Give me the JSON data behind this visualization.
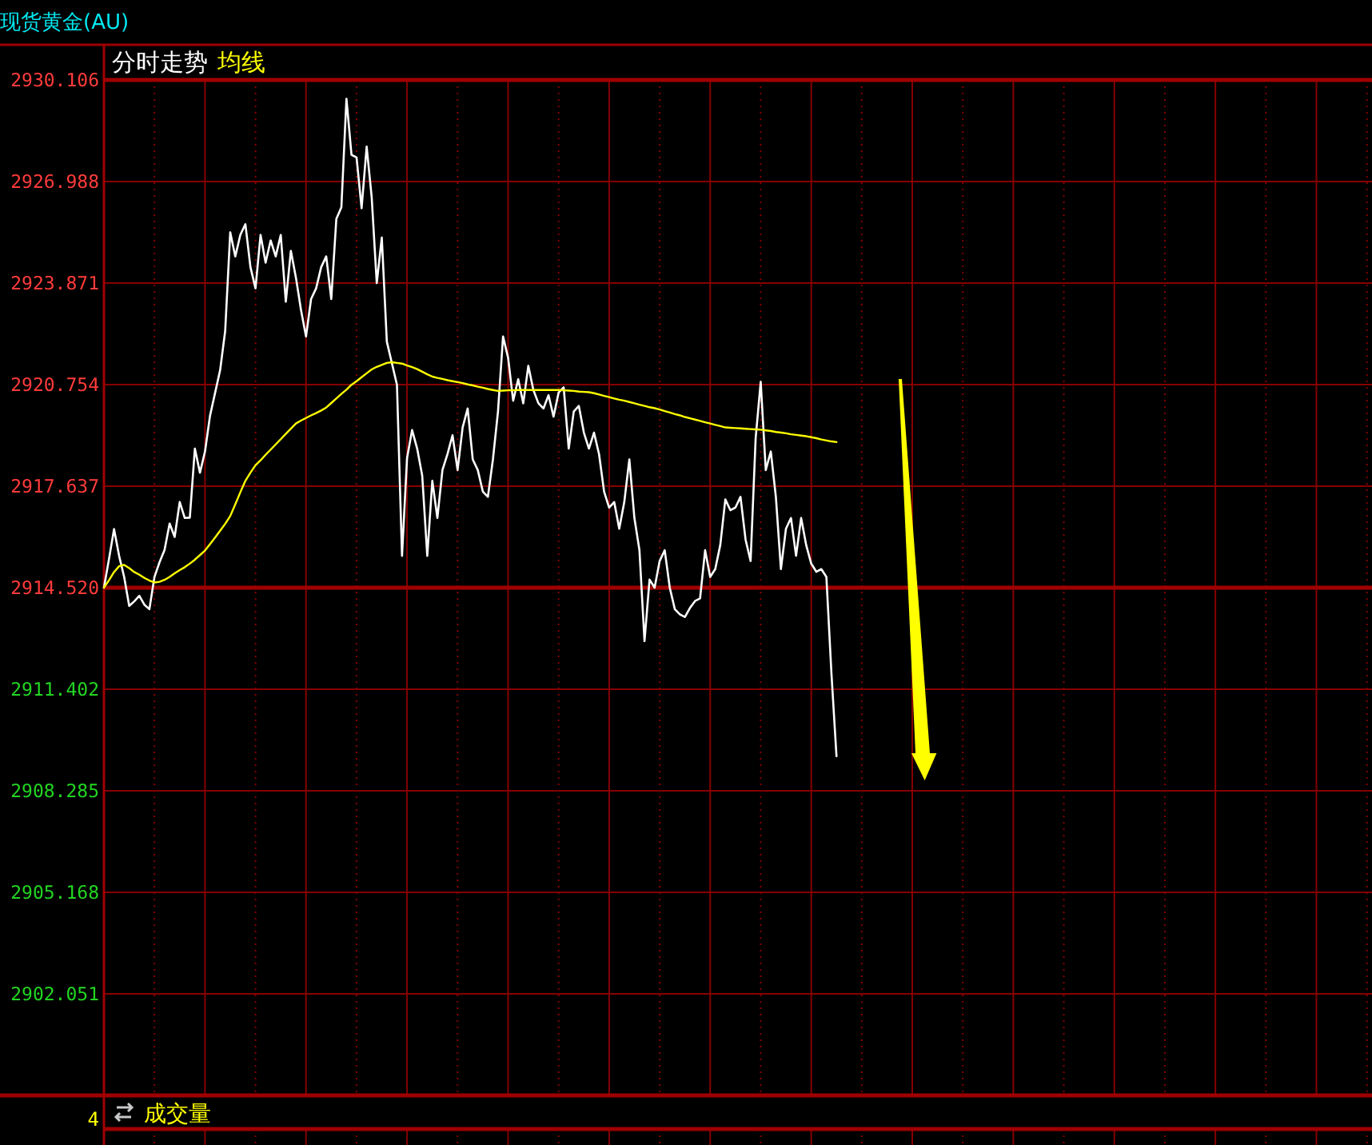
{
  "chart_data": {
    "type": "line",
    "title": "现货黄金(AU)",
    "categories": [
      null,
      null,
      null,
      null,
      null,
      null,
      null,
      null,
      null,
      null,
      null,
      null,
      null,
      null,
      null,
      null,
      null,
      null,
      null,
      null,
      null,
      null,
      null,
      null,
      null,
      null,
      null,
      null,
      null,
      null,
      null,
      null,
      null,
      null,
      null,
      null,
      null,
      null,
      null,
      null,
      null,
      null,
      null,
      null,
      null,
      null,
      null,
      null,
      null,
      null,
      null,
      null,
      null,
      null,
      null,
      null,
      null,
      null,
      null,
      null,
      null,
      null,
      null,
      null,
      null,
      null,
      null,
      null,
      null,
      null,
      null,
      null,
      null,
      null,
      null,
      null,
      null,
      null,
      null,
      null,
      null,
      null,
      null,
      null,
      null,
      null,
      null,
      null,
      null,
      null,
      null,
      null,
      null,
      null,
      null,
      null,
      null,
      null,
      null,
      null,
      null,
      null,
      null,
      null,
      null,
      null,
      null,
      null,
      null,
      null,
      null,
      null,
      null,
      null,
      null,
      null,
      null,
      null,
      null,
      null,
      null,
      null,
      null,
      null,
      null,
      null,
      null,
      null,
      null,
      null,
      null,
      null,
      null,
      null,
      null,
      null,
      null,
      null,
      null,
      null,
      null,
      null,
      null,
      null,
      null,
      null,
      null,
      null,
      null,
      null,
      null,
      null,
      null,
      null,
      null,
      null,
      null,
      null,
      null,
      null,
      null,
      null,
      null,
      null,
      null,
      null,
      null,
      null,
      null,
      null,
      null,
      null,
      null,
      null,
      null,
      null,
      null,
      null,
      null,
      null,
      null,
      null,
      null,
      null,
      null,
      null,
      null,
      null,
      null,
      null,
      null,
      null,
      null,
      null,
      null,
      null,
      null,
      null,
      null,
      null,
      null,
      null,
      null,
      null,
      null,
      null,
      null,
      null,
      null,
      null,
      null,
      null,
      null,
      null,
      null,
      null,
      null,
      null,
      null,
      null,
      null,
      null,
      null,
      null,
      null,
      null,
      null,
      null,
      null,
      null,
      null,
      null,
      null,
      null,
      null,
      null,
      null,
      null,
      null,
      null,
      null,
      null,
      null,
      null,
      null,
      null,
      null,
      null,
      null,
      null,
      null
    ],
    "series": [
      {
        "name": "分时走势",
        "color": "#ffffff",
        "values": [
          2914.52,
          2915.4,
          2916.32,
          2915.5,
          2914.85,
          2913.96,
          2914.1,
          2914.27,
          2914.0,
          2913.86,
          2914.85,
          2915.3,
          2915.68,
          2916.49,
          2916.08,
          2917.15,
          2916.66,
          2916.67,
          2918.79,
          2918.05,
          2918.7,
          2919.8,
          2920.5,
          2921.2,
          2922.4,
          2925.43,
          2924.69,
          2925.35,
          2925.68,
          2924.36,
          2923.71,
          2925.35,
          2924.5,
          2925.18,
          2924.69,
          2925.35,
          2923.3,
          2924.86,
          2924.04,
          2923.05,
          2922.23,
          2923.38,
          2923.71,
          2924.36,
          2924.69,
          2923.38,
          2925.84,
          2926.2,
          2929.53,
          2927.81,
          2927.73,
          2926.17,
          2928.06,
          2926.5,
          2923.87,
          2925.27,
          2922.07,
          2921.41,
          2920.75,
          2915.5,
          2918.5,
          2919.36,
          2918.79,
          2917.96,
          2915.5,
          2917.8,
          2916.66,
          2918.13,
          2918.62,
          2919.2,
          2918.13,
          2919.44,
          2920.02,
          2918.46,
          2918.13,
          2917.47,
          2917.31,
          2918.46,
          2919.93,
          2922.23,
          2921.58,
          2920.26,
          2920.92,
          2920.18,
          2921.33,
          2920.59,
          2920.18,
          2920.02,
          2920.43,
          2919.77,
          2920.51,
          2920.67,
          2918.79,
          2919.93,
          2920.1,
          2919.28,
          2918.79,
          2919.28,
          2918.62,
          2917.47,
          2916.98,
          2917.15,
          2916.33,
          2917.15,
          2918.46,
          2916.66,
          2915.67,
          2912.88,
          2914.77,
          2914.52,
          2915.34,
          2915.67,
          2914.52,
          2913.86,
          2913.7,
          2913.62,
          2913.9,
          2914.11,
          2914.19,
          2915.67,
          2914.85,
          2915.09,
          2915.83,
          2917.23,
          2916.9,
          2916.98,
          2917.31,
          2916.0,
          2915.34,
          2919.11,
          2920.84,
          2918.13,
          2918.7,
          2917.31,
          2915.09,
          2916.33,
          2916.66,
          2915.5,
          2916.66,
          2915.83,
          2915.26,
          2915.01,
          2915.09,
          2914.85,
          2911.89,
          2909.35,
          null,
          null,
          null,
          null,
          null,
          null,
          null,
          null,
          null,
          null,
          null,
          null,
          null,
          null,
          null,
          null,
          null,
          null,
          null,
          null,
          null,
          null,
          null,
          null,
          null,
          null,
          null,
          null,
          null,
          null,
          null,
          null,
          null,
          null,
          null,
          null,
          null,
          null,
          null,
          null,
          null,
          null,
          null,
          null,
          null,
          null,
          null,
          null,
          null,
          null,
          null,
          null,
          null,
          null,
          null,
          null,
          null,
          null,
          null,
          null,
          null,
          null,
          null,
          null,
          null,
          null,
          null,
          null,
          null,
          null,
          null,
          null,
          null,
          null,
          null,
          null,
          null,
          null,
          null,
          null,
          null,
          null,
          null,
          null,
          null,
          null,
          null,
          null,
          null,
          null,
          null,
          null,
          null,
          null,
          null,
          null,
          null,
          null,
          null,
          null,
          null,
          null,
          null,
          null,
          null
        ]
      },
      {
        "name": "均线",
        "color": "#ffff00",
        "values": [
          2914.52,
          2914.75,
          2915.0,
          2915.18,
          2915.22,
          2915.12,
          2915.0,
          2914.92,
          2914.82,
          2914.74,
          2914.68,
          2914.7,
          2914.76,
          2914.85,
          2914.96,
          2915.06,
          2915.15,
          2915.26,
          2915.38,
          2915.52,
          2915.66,
          2915.86,
          2916.06,
          2916.27,
          2916.48,
          2916.72,
          2917.08,
          2917.45,
          2917.8,
          2918.05,
          2918.28,
          2918.43,
          2918.6,
          2918.76,
          2918.92,
          2919.08,
          2919.24,
          2919.4,
          2919.56,
          2919.65,
          2919.73,
          2919.81,
          2919.88,
          2919.96,
          2920.05,
          2920.19,
          2920.33,
          2920.47,
          2920.6,
          2920.75,
          2920.86,
          2920.98,
          2921.1,
          2921.22,
          2921.3,
          2921.36,
          2921.42,
          2921.44,
          2921.42,
          2921.4,
          2921.34,
          2921.29,
          2921.23,
          2921.15,
          2921.07,
          2921.0,
          2920.96,
          2920.93,
          2920.89,
          2920.86,
          2920.83,
          2920.8,
          2920.76,
          2920.73,
          2920.69,
          2920.66,
          2920.62,
          2920.59,
          2920.56,
          2920.57,
          2920.58,
          2920.58,
          2920.59,
          2920.59,
          2920.59,
          2920.59,
          2920.59,
          2920.59,
          2920.59,
          2920.59,
          2920.59,
          2920.58,
          2920.57,
          2920.56,
          2920.54,
          2920.53,
          2920.52,
          2920.49,
          2920.45,
          2920.41,
          2920.37,
          2920.33,
          2920.29,
          2920.26,
          2920.22,
          2920.18,
          2920.14,
          2920.1,
          2920.06,
          2920.03,
          2919.99,
          2919.94,
          2919.9,
          2919.85,
          2919.81,
          2919.76,
          2919.72,
          2919.68,
          2919.64,
          2919.6,
          2919.56,
          2919.52,
          2919.48,
          2919.44,
          2919.43,
          2919.42,
          2919.41,
          2919.4,
          2919.39,
          2919.38,
          2919.37,
          2919.35,
          2919.33,
          2919.3,
          2919.28,
          2919.26,
          2919.23,
          2919.21,
          2919.19,
          2919.17,
          2919.14,
          2919.11,
          2919.07,
          2919.04,
          2919.01,
          2918.99,
          null,
          null,
          null,
          null,
          null,
          null,
          null,
          null,
          null,
          null,
          null,
          null,
          null,
          null,
          null,
          null,
          null,
          null,
          null,
          null,
          null,
          null,
          null,
          null,
          null,
          null,
          null,
          null,
          null,
          null,
          null,
          null,
          null,
          null,
          null,
          null,
          null,
          null,
          null,
          null,
          null,
          null,
          null,
          null,
          null,
          null,
          null,
          null,
          null,
          null,
          null,
          null,
          null,
          null,
          null,
          null,
          null,
          null,
          null,
          null,
          null,
          null,
          null,
          null,
          null,
          null,
          null,
          null,
          null,
          null,
          null,
          null,
          null,
          null,
          null,
          null,
          null,
          null,
          null,
          null,
          null,
          null,
          null,
          null,
          null,
          null,
          null,
          null,
          null,
          null,
          null,
          null,
          null,
          null,
          null,
          null,
          null,
          null,
          null,
          null,
          null,
          null,
          null,
          null,
          null
        ]
      }
    ],
    "ylim": [
      2898.934,
      2930.106
    ],
    "yticks": [
      2930.106,
      2926.988,
      2923.871,
      2920.754,
      2917.637,
      {
        "value": 2914.52,
        "label": "2914.520"
      },
      2911.402,
      2908.285,
      2905.168,
      2902.051
    ],
    "ref_lines": [
      {
        "axis": "y",
        "value": 2914.52,
        "color": "#a00000"
      }
    ],
    "grid": true,
    "legend": "top left",
    "tick_labels": "y",
    "annotations": [
      "成交量",
      "4"
    ]
  }
}
